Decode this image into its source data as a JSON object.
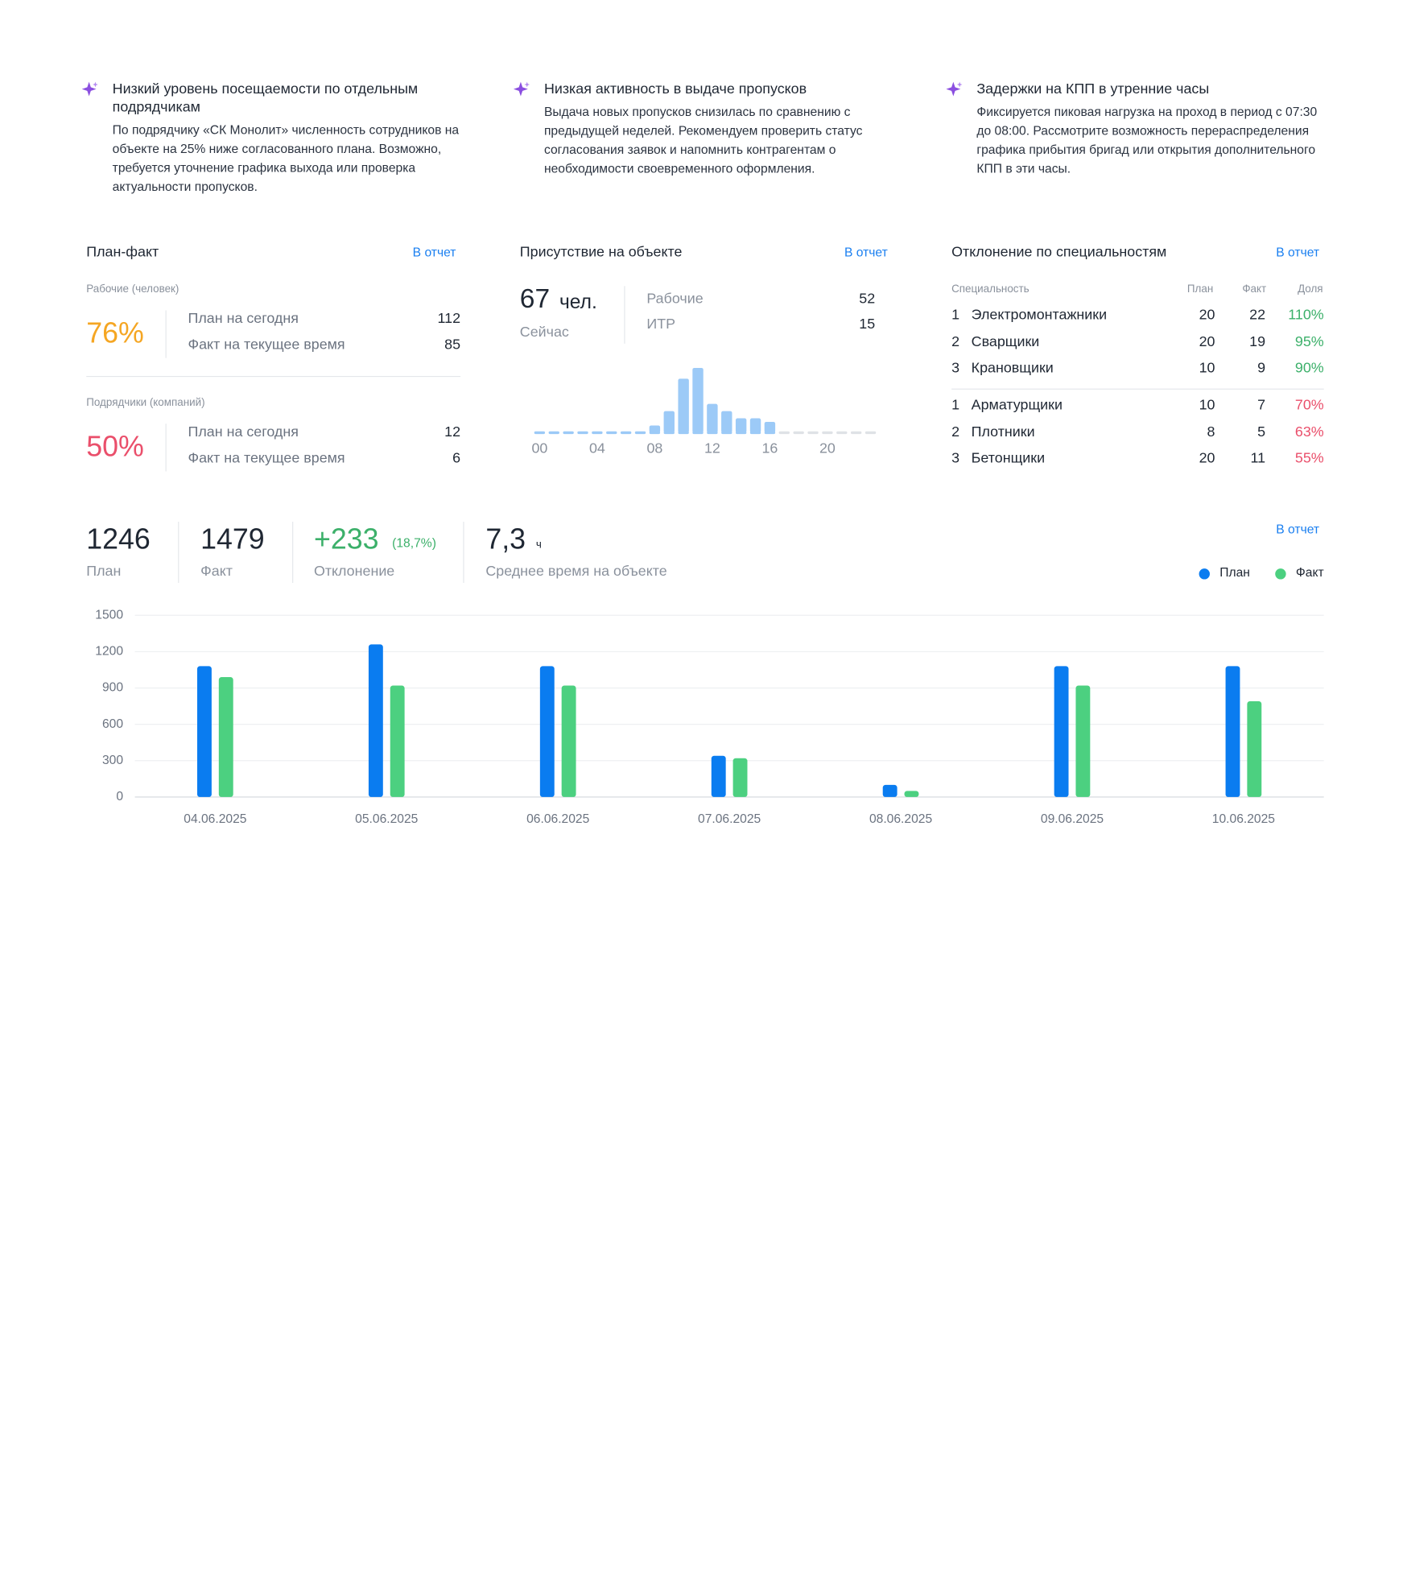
{
  "insights": [
    {
      "title": "Низкий уровень посещаемости по отдельным подрядчикам",
      "text": "По подрядчику «СК Монолит» численность сотрудников на объекте на 25% ниже согласованного плана. Возможно, требуется уточнение графика выхода или проверка актуальности пропусков."
    },
    {
      "title": "Низкая активность в выдаче пропусков",
      "text": "Выдача новых пропусков снизилась по сравнению с предыдущей неделей. Рекомендуем проверить статус согласования заявок и напомнить контрагентам о необходимости своевременного оформления."
    },
    {
      "title": "Задержки на КПП в утренние часы",
      "text": "Фиксируется пиковая нагрузка на проход в период с 07:30 до 08:00. Рассмотрите возможность перераспределения графика прибытия бригад или открытия дополнительного КПП в эти часы."
    }
  ],
  "plan_fact": {
    "title": "План-факт",
    "link": "В отчет",
    "groups": [
      {
        "label": "Рабочие (человек)",
        "percent": "76%",
        "color": "#f5a623",
        "rows": [
          {
            "label": "План на сегодня",
            "value": 112
          },
          {
            "label": "Факт на текущее время",
            "value": 85
          }
        ]
      },
      {
        "label": "Подрядчики (компаний)",
        "percent": "50%",
        "color": "#ea4f6b",
        "rows": [
          {
            "label": "План на сегодня",
            "value": 12
          },
          {
            "label": "Факт на текущее время",
            "value": 6
          }
        ]
      }
    ]
  },
  "presence": {
    "title": "Присутствие на объекте",
    "link": "В отчет",
    "count": "67",
    "unit": "чел.",
    "now": "Сейчас",
    "rows": [
      {
        "label": "Рабочие",
        "value": 52
      },
      {
        "label": "ИТР",
        "value": 15
      }
    ]
  },
  "deviation": {
    "title": "Отклонение по специальностям",
    "link": "В отчет",
    "headers": [
      "Специальность",
      "План",
      "Факт",
      "Доля"
    ],
    "groups": [
      {
        "color": "#3cb06a",
        "rows": [
          {
            "rank": 1,
            "name": "Электромонтажники",
            "plan": 20,
            "fact": 22,
            "share": "110%"
          },
          {
            "rank": 2,
            "name": "Сварщики",
            "plan": 20,
            "fact": 19,
            "share": "95%"
          },
          {
            "rank": 3,
            "name": "Крановщики",
            "plan": 10,
            "fact": 9,
            "share": "90%"
          }
        ]
      },
      {
        "color": "#ea4f6b",
        "rows": [
          {
            "rank": 1,
            "name": "Арматурщики",
            "plan": 10,
            "fact": 7,
            "share": "70%"
          },
          {
            "rank": 2,
            "name": "Плотники",
            "plan": 8,
            "fact": 5,
            "share": "63%"
          },
          {
            "rank": 3,
            "name": "Бетонщики",
            "plan": 20,
            "fact": 11,
            "share": "55%"
          }
        ]
      }
    ]
  },
  "summary": {
    "link": "В отчет",
    "items": [
      {
        "value": "1246",
        "label": "План"
      },
      {
        "value": "1479",
        "label": "Факт"
      },
      {
        "value": "+233",
        "extra": "(18,7%)",
        "label": "Отклонение",
        "color": "#3cb06a"
      },
      {
        "value": "7,3",
        "unit": "ч",
        "label": "Среднее время на объекте"
      }
    ]
  },
  "chart_data": [
    {
      "type": "bar",
      "color": "#9ccaf7",
      "categories": [
        "00",
        null,
        null,
        null,
        "04",
        null,
        null,
        null,
        "08",
        null,
        null,
        null,
        "12",
        null,
        null,
        null,
        "16",
        null,
        null,
        null,
        "20",
        null,
        null,
        null
      ],
      "values": [
        0,
        0,
        0,
        0,
        0,
        0,
        0,
        0,
        2,
        6,
        15,
        18,
        8,
        6,
        4,
        4,
        3,
        null,
        null,
        null,
        null,
        null,
        null,
        null
      ]
    },
    {
      "type": "bar",
      "categories": [
        "04.06.2025",
        "05.06.2025",
        "06.06.2025",
        "07.06.2025",
        "08.06.2025",
        "09.06.2025",
        "10.06.2025"
      ],
      "series": [
        {
          "name": "План",
          "color": "#0a7cf0",
          "values": [
            1080,
            1260,
            1080,
            340,
            100,
            1080,
            1080
          ]
        },
        {
          "name": "Факт",
          "color": "#4cd080",
          "values": [
            990,
            920,
            920,
            320,
            50,
            920,
            790
          ]
        }
      ],
      "ylim": [
        0,
        1500
      ],
      "yticks": [
        0,
        300,
        600,
        900,
        1200,
        1500
      ],
      "grid": true,
      "legend": "top-right"
    }
  ]
}
